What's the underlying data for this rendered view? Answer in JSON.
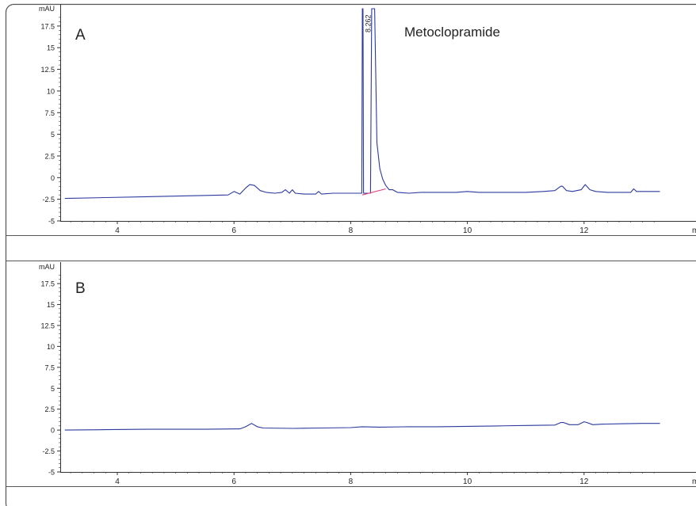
{
  "chart_data": [
    {
      "type": "line",
      "panel_label": "A",
      "annotation": "Metoclopramide",
      "peak_label": "8.262",
      "ylabel": "mAU",
      "xlabel": "m",
      "xlim": [
        3.1,
        13.3
      ],
      "ylim": [
        -5,
        19.5
      ],
      "x_ticks": [
        4,
        6,
        8,
        10,
        12
      ],
      "y_ticks": [
        "-5",
        "-2.5",
        "0",
        "2.5",
        "5",
        "7.5",
        "10",
        "12.5",
        "15",
        "17.5"
      ],
      "series": [
        {
          "color": "#2b3a9e",
          "x": [
            3.1,
            3.8,
            4.5,
            5.2,
            5.9,
            6.0,
            6.1,
            6.2,
            6.27,
            6.35,
            6.45,
            6.55,
            6.7,
            6.82,
            6.88,
            6.95,
            7.0,
            7.05,
            7.2,
            7.4,
            7.45,
            7.5,
            7.7,
            8.0,
            8.19,
            8.2,
            8.21,
            8.22,
            8.26,
            8.34,
            8.36,
            8.38,
            8.41,
            8.45,
            8.5,
            8.55,
            8.6,
            8.66,
            8.72,
            8.8,
            9.0,
            9.2,
            9.4,
            9.6,
            9.8,
            10.0,
            10.2,
            10.6,
            11.0,
            11.3,
            11.5,
            11.6,
            11.63,
            11.7,
            11.8,
            11.95,
            12.02,
            12.1,
            12.2,
            12.4,
            12.8,
            12.85,
            12.9,
            13.3
          ],
          "y": [
            -2.4,
            -2.3,
            -2.2,
            -2.1,
            -2.0,
            -1.6,
            -1.9,
            -1.2,
            -0.8,
            -0.9,
            -1.5,
            -1.7,
            -1.8,
            -1.7,
            -1.4,
            -1.8,
            -1.4,
            -1.8,
            -1.9,
            -1.9,
            -1.6,
            -1.9,
            -1.8,
            -1.8,
            -1.8,
            19.5,
            19.5,
            -1.8,
            -1.8,
            -1.8,
            19.5,
            19.5,
            19.5,
            4.0,
            1.0,
            -0.2,
            -0.9,
            -1.4,
            -1.4,
            -1.7,
            -1.8,
            -1.7,
            -1.7,
            -1.7,
            -1.7,
            -1.6,
            -1.7,
            -1.7,
            -1.7,
            -1.6,
            -1.5,
            -1.0,
            -1.0,
            -1.5,
            -1.6,
            -1.4,
            -0.8,
            -1.4,
            -1.6,
            -1.7,
            -1.7,
            -1.3,
            -1.6,
            -1.6
          ]
        },
        {
          "color": "#e0407a",
          "x": [
            8.2,
            8.6
          ],
          "y": [
            -2.0,
            -1.3
          ]
        }
      ]
    },
    {
      "type": "line",
      "panel_label": "B",
      "ylabel": "mAU",
      "xlabel": "m",
      "xlim": [
        3.1,
        13.3
      ],
      "ylim": [
        -5,
        19.5
      ],
      "x_ticks": [
        4,
        6,
        8,
        10,
        12
      ],
      "y_ticks": [
        "-5",
        "-2.5",
        "0",
        "2.5",
        "5",
        "7.5",
        "10",
        "12.5",
        "15",
        "17.5"
      ],
      "series": [
        {
          "color": "#2b3a9e",
          "x": [
            3.1,
            3.8,
            4.5,
            5.5,
            6.1,
            6.2,
            6.3,
            6.4,
            6.5,
            7.0,
            7.5,
            8.0,
            8.2,
            8.5,
            9.0,
            9.5,
            10.0,
            10.5,
            11.0,
            11.5,
            11.6,
            11.65,
            11.75,
            11.9,
            12.0,
            12.05,
            12.15,
            12.3,
            12.6,
            13.0,
            13.3
          ],
          "y": [
            0.0,
            0.05,
            0.1,
            0.1,
            0.15,
            0.4,
            0.8,
            0.4,
            0.25,
            0.2,
            0.25,
            0.3,
            0.4,
            0.35,
            0.4,
            0.4,
            0.45,
            0.5,
            0.55,
            0.6,
            0.9,
            0.9,
            0.65,
            0.65,
            1.0,
            0.9,
            0.65,
            0.7,
            0.75,
            0.8,
            0.8
          ]
        }
      ]
    }
  ]
}
